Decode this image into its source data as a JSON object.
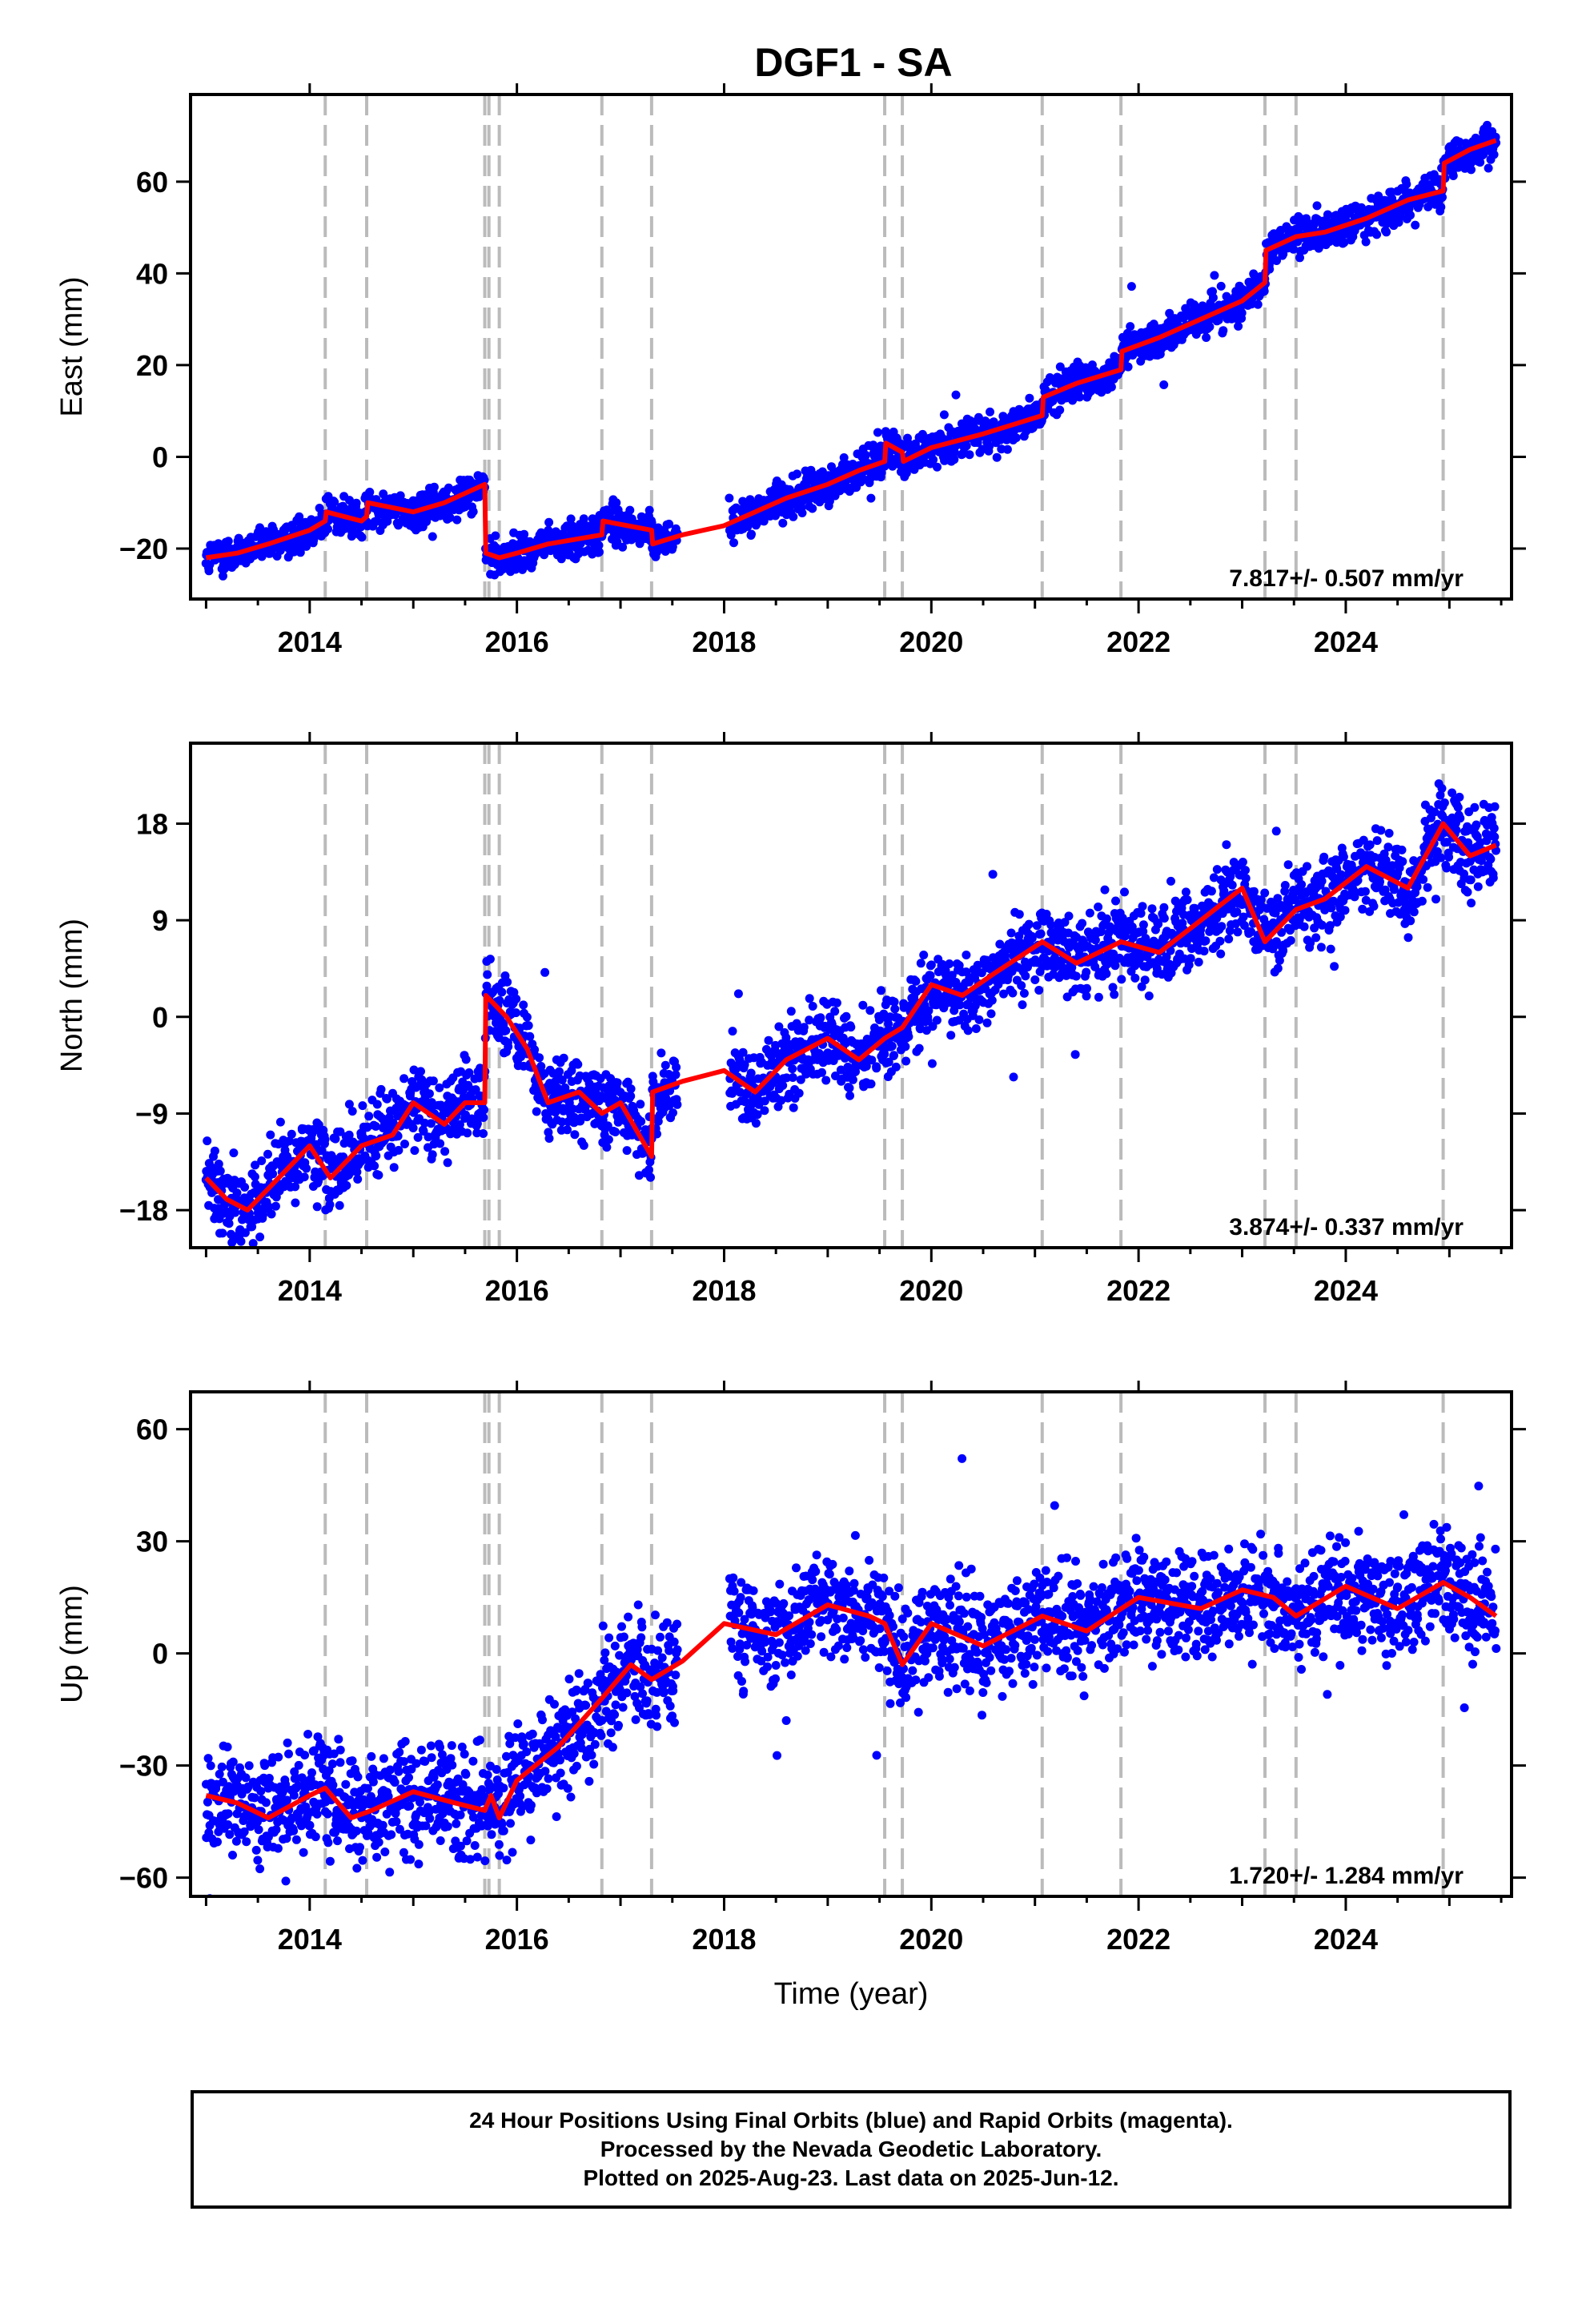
{
  "title": "DGF1 - SA",
  "xlabel": "Time (year)",
  "footer": {
    "line1": "24 Hour Positions Using Final Orbits (blue) and Rapid Orbits (magenta).",
    "line2": "Processed by the Nevada Geodetic Laboratory.",
    "line3": "Plotted on 2025-Aug-23. Last data on 2025-Jun-12."
  },
  "colors": {
    "points": "#0000ff",
    "model": "#ff0000",
    "event_lines": "#bbbbbb",
    "frame": "#000000"
  },
  "chart_data": [
    {
      "type": "scatter",
      "ylabel": "East (mm)",
      "xlim": [
        2012.85,
        2025.6
      ],
      "ylim": [
        -31,
        79
      ],
      "xticks": [
        2014,
        2016,
        2018,
        2020,
        2022,
        2024
      ],
      "xtick_labels": [
        "2014",
        "2016",
        "2018",
        "2020",
        "2022",
        "2024"
      ],
      "yticks": [
        -20,
        0,
        20,
        40,
        60
      ],
      "ytick_labels": [
        "−20",
        "0",
        "20",
        "40",
        "60"
      ],
      "rate": "7.817+/- 0.507 mm/yr",
      "event_lines": [
        2014.15,
        2014.55,
        2015.69,
        2015.73,
        2015.83,
        2016.82,
        2017.3,
        2019.55,
        2019.72,
        2021.07,
        2021.83,
        2023.22,
        2023.52,
        2024.94
      ],
      "model": {
        "x": [
          2013.0,
          2013.3,
          2013.6,
          2014.0,
          2014.15,
          2014.16,
          2014.5,
          2014.55,
          2014.56,
          2015.0,
          2015.3,
          2015.69,
          2015.7,
          2015.83,
          2016.0,
          2016.3,
          2016.82,
          2016.83,
          2017.3,
          2017.31,
          2017.6,
          2018.0,
          2018.3,
          2018.6,
          2019.0,
          2019.3,
          2019.55,
          2019.56,
          2019.72,
          2019.73,
          2020.0,
          2020.5,
          2021.07,
          2021.08,
          2021.4,
          2021.83,
          2021.84,
          2022.2,
          2022.6,
          2023.0,
          2023.22,
          2023.23,
          2023.52,
          2023.8,
          2024.2,
          2024.6,
          2024.94,
          2024.95,
          2025.2,
          2025.45
        ],
        "y": [
          -22,
          -21,
          -19,
          -16,
          -14,
          -12,
          -14,
          -13,
          -10,
          -12,
          -10,
          -6,
          -21,
          -22,
          -21,
          -19,
          -17,
          -14,
          -16,
          -19,
          -17,
          -15,
          -12,
          -9,
          -6,
          -3,
          -1,
          3,
          1,
          -1,
          2,
          5,
          9,
          13,
          16,
          19,
          23,
          26,
          30,
          34,
          38,
          45,
          48,
          49,
          52,
          56,
          58,
          64,
          67,
          69
        ]
      },
      "points": {
        "count": 2600,
        "noise": 2.5
      }
    },
    {
      "type": "scatter",
      "ylabel": "North (mm)",
      "xlim": [
        2012.85,
        2025.6
      ],
      "ylim": [
        -21.5,
        25.5
      ],
      "xticks": [
        2014,
        2016,
        2018,
        2020,
        2022,
        2024
      ],
      "xtick_labels": [
        "2014",
        "2016",
        "2018",
        "2020",
        "2022",
        "2024"
      ],
      "yticks": [
        -18,
        -9,
        0,
        9,
        18
      ],
      "ytick_labels": [
        "−18",
        "−9",
        "0",
        "9",
        "18"
      ],
      "rate": "3.874+/- 0.337 mm/yr",
      "event_lines": [
        2014.15,
        2014.55,
        2015.69,
        2015.73,
        2015.83,
        2016.82,
        2017.3,
        2019.55,
        2019.72,
        2021.07,
        2021.83,
        2023.22,
        2023.52,
        2024.94
      ],
      "model": {
        "x": [
          2013.0,
          2013.2,
          2013.4,
          2013.7,
          2014.0,
          2014.2,
          2014.5,
          2014.8,
          2015.0,
          2015.3,
          2015.5,
          2015.69,
          2015.7,
          2015.9,
          2016.1,
          2016.3,
          2016.6,
          2016.82,
          2017.0,
          2017.3,
          2017.31,
          2017.6,
          2018.0,
          2018.3,
          2018.6,
          2019.0,
          2019.3,
          2019.55,
          2019.72,
          2020.0,
          2020.3,
          2020.6,
          2021.07,
          2021.4,
          2021.83,
          2022.2,
          2022.6,
          2023.0,
          2023.22,
          2023.52,
          2023.8,
          2024.2,
          2024.6,
          2024.94,
          2025.2,
          2025.45
        ],
        "y": [
          -15,
          -17,
          -18,
          -15,
          -12,
          -15,
          -12,
          -11,
          -8,
          -10,
          -8,
          -8,
          2,
          0,
          -3,
          -8,
          -7,
          -9,
          -8,
          -13,
          -7,
          -6,
          -5,
          -7,
          -4,
          -2,
          -4,
          -2,
          -1,
          3,
          2,
          4,
          7,
          5,
          7,
          6,
          9,
          12,
          7,
          10,
          11,
          14,
          12,
          18,
          15,
          16
        ]
      },
      "points": {
        "count": 2600,
        "noise": 2.3
      }
    },
    {
      "type": "scatter",
      "ylabel": "Up (mm)",
      "xlim": [
        2012.85,
        2025.6
      ],
      "ylim": [
        -65,
        70
      ],
      "xticks": [
        2014,
        2016,
        2018,
        2020,
        2022,
        2024
      ],
      "xtick_labels": [
        "2014",
        "2016",
        "2018",
        "2020",
        "2022",
        "2024"
      ],
      "yticks": [
        -60,
        -30,
        0,
        30,
        60
      ],
      "ytick_labels": [
        "−60",
        "−30",
        "0",
        "30",
        "60"
      ],
      "rate": "1.720+/- 1.284 mm/yr",
      "event_lines": [
        2014.15,
        2014.55,
        2015.69,
        2015.73,
        2015.83,
        2016.82,
        2017.3,
        2019.55,
        2019.72,
        2021.07,
        2021.83,
        2023.22,
        2023.52,
        2024.94
      ],
      "model": {
        "x": [
          2013.0,
          2013.3,
          2013.6,
          2014.0,
          2014.15,
          2014.4,
          2014.6,
          2015.0,
          2015.4,
          2015.69,
          2015.75,
          2015.83,
          2016.0,
          2016.4,
          2016.82,
          2017.1,
          2017.3,
          2017.6,
          2018.0,
          2018.5,
          2019.0,
          2019.4,
          2019.55,
          2019.72,
          2020.0,
          2020.5,
          2021.07,
          2021.5,
          2022.0,
          2022.6,
          2023.0,
          2023.3,
          2023.52,
          2024.0,
          2024.5,
          2024.94,
          2025.2,
          2025.45
        ],
        "y": [
          -38,
          -40,
          -44,
          -38,
          -36,
          -44,
          -42,
          -37,
          -40,
          -42,
          -38,
          -44,
          -34,
          -25,
          -12,
          -3,
          -7,
          -2,
          8,
          5,
          13,
          10,
          8,
          -3,
          8,
          2,
          10,
          6,
          15,
          12,
          17,
          15,
          10,
          18,
          12,
          19,
          15,
          10
        ]
      },
      "points": {
        "count": 2600,
        "noise": 9
      }
    }
  ]
}
